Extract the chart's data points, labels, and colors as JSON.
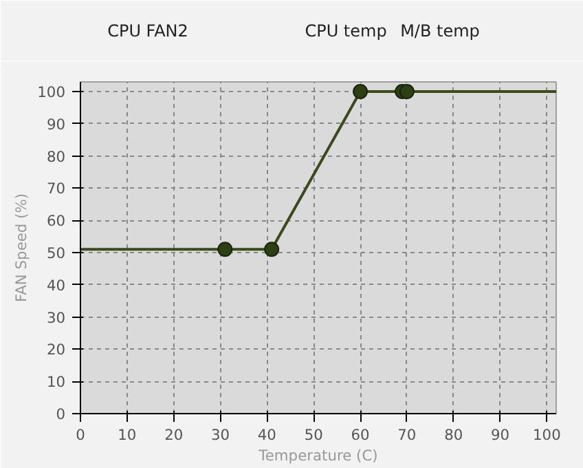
{
  "chart_data": {
    "type": "line",
    "xlabel": "Temperature (C)",
    "ylabel": "FAN Speed (%)",
    "annotations": [
      "CPU FAN2",
      "CPU temp",
      "M/B temp"
    ],
    "series": [
      {
        "color": "#3b4a1a",
        "x": [
          0,
          31,
          41,
          60,
          69,
          70,
          102
        ],
        "values": [
          51,
          51,
          51,
          100,
          100,
          100,
          100
        ],
        "marker": "none"
      },
      {
        "type": "scatter",
        "color": "#2e3f14",
        "x": [
          31,
          41,
          60,
          69,
          70
        ],
        "values": [
          51,
          51,
          100,
          100,
          100
        ],
        "marker": "circle"
      }
    ],
    "xlim": [
      0,
      102
    ],
    "ylim": [
      0,
      103
    ],
    "xticks": [
      0,
      10,
      20,
      30,
      40,
      50,
      60,
      70,
      80,
      90,
      100
    ],
    "yticks": [
      0,
      10,
      20,
      30,
      40,
      50,
      60,
      70,
      80,
      90,
      100
    ],
    "grid": true,
    "line_style": "solid"
  }
}
